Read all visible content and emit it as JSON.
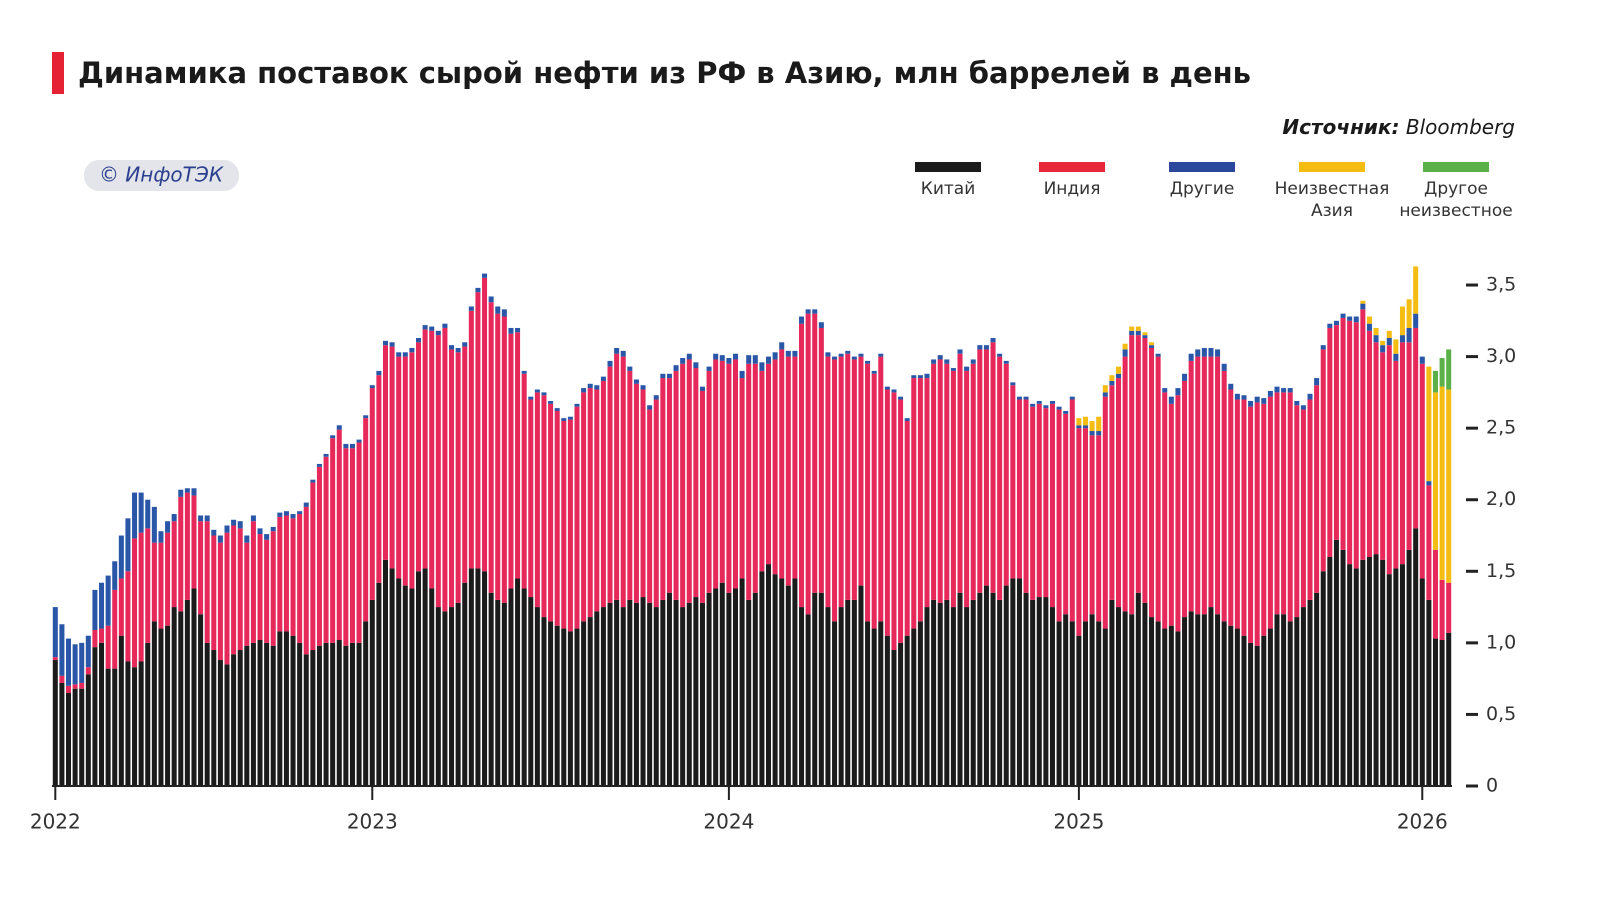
{
  "chart_data": {
    "type": "stacked_bar",
    "title": "Динамика поставок сырой нефти из РФ в Азию, млн баррелей в день",
    "source_label": "Источник:",
    "source": "Bloomberg",
    "watermark": "© ИнфоТЭК",
    "categories": [
      "2022",
      null,
      null,
      null,
      null,
      null,
      null,
      null,
      null,
      null,
      null,
      null,
      null,
      null,
      null,
      null,
      null,
      null,
      null,
      null,
      null,
      null,
      null,
      null,
      null,
      null,
      null,
      null,
      null,
      null,
      null,
      null,
      null,
      null,
      null,
      null,
      null,
      null,
      null,
      null,
      null,
      null,
      null,
      null,
      null,
      null,
      null,
      null,
      "2023",
      null,
      null,
      null,
      null,
      null,
      null,
      null,
      null,
      null,
      null,
      null,
      null,
      null,
      null,
      null,
      null,
      null,
      null,
      null,
      null,
      null,
      null,
      null,
      null,
      null,
      null,
      null,
      null,
      null,
      null,
      null,
      null,
      null,
      null,
      null,
      null,
      null,
      null,
      null,
      null,
      null,
      null,
      null,
      null,
      null,
      null,
      null,
      null,
      null,
      null,
      null,
      null,
      null,
      "2024",
      null,
      null,
      null,
      null,
      null,
      null,
      null,
      null,
      null,
      null,
      null,
      null,
      null,
      null,
      null,
      null,
      null,
      null,
      null,
      null,
      null,
      null,
      null,
      null,
      null,
      null,
      null,
      null,
      null,
      null,
      null,
      null,
      null,
      null,
      null,
      null,
      null,
      null,
      null,
      null,
      null,
      null,
      null,
      null,
      null,
      null,
      null,
      null,
      null,
      null,
      null,
      null,
      "2025",
      null,
      null,
      null,
      null,
      null,
      null,
      null,
      null,
      null,
      null,
      null,
      null,
      null,
      null,
      null,
      null,
      null,
      null,
      null,
      null,
      null,
      null,
      null,
      null,
      null,
      null,
      null,
      null,
      null,
      null,
      null,
      null,
      null,
      null,
      null,
      null,
      null,
      null,
      null,
      null,
      null,
      null,
      null,
      null,
      null,
      null,
      null,
      null,
      null,
      null,
      null,
      "2026",
      null,
      null,
      null,
      null
    ],
    "series": [
      {
        "name": "Китай",
        "color": "#1b1b1b",
        "values": [
          0.88,
          0.72,
          0.65,
          0.68,
          0.68,
          0.78,
          0.97,
          1.0,
          0.82,
          0.82,
          1.05,
          0.87,
          0.83,
          0.87,
          1.0,
          1.15,
          1.1,
          1.12,
          1.25,
          1.22,
          1.3,
          1.38,
          1.2,
          1.0,
          0.95,
          0.88,
          0.85,
          0.92,
          0.95,
          0.98,
          1.0,
          1.02,
          1.0,
          0.98,
          1.08,
          1.08,
          1.05,
          1.0,
          0.92,
          0.95,
          0.98,
          1.0,
          1.0,
          1.02,
          0.98,
          1.0,
          1.0,
          1.15,
          1.3,
          1.42,
          1.58,
          1.52,
          1.45,
          1.4,
          1.38,
          1.5,
          1.52,
          1.38,
          1.25,
          1.22,
          1.25,
          1.28,
          1.42,
          1.52,
          1.52,
          1.5,
          1.35,
          1.3,
          1.28,
          1.38,
          1.45,
          1.38,
          1.32,
          1.25,
          1.18,
          1.15,
          1.12,
          1.1,
          1.08,
          1.1,
          1.15,
          1.18,
          1.22,
          1.25,
          1.28,
          1.3,
          1.25,
          1.3,
          1.28,
          1.32,
          1.28,
          1.25,
          1.3,
          1.35,
          1.3,
          1.25,
          1.28,
          1.32,
          1.28,
          1.35,
          1.38,
          1.42,
          1.35,
          1.38,
          1.45,
          1.3,
          1.35,
          1.5,
          1.55,
          1.48,
          1.45,
          1.4,
          1.45,
          1.25,
          1.2,
          1.35,
          1.35,
          1.25,
          1.15,
          1.25,
          1.3,
          1.3,
          1.4,
          1.15,
          1.1,
          1.15,
          1.05,
          0.95,
          1.0,
          1.05,
          1.1,
          1.15,
          1.25,
          1.3,
          1.28,
          1.3,
          1.25,
          1.35,
          1.25,
          1.3,
          1.35,
          1.4,
          1.35,
          1.3,
          1.4,
          1.45,
          1.45,
          1.35,
          1.3,
          1.32,
          1.32,
          1.25,
          1.15,
          1.2,
          1.15,
          1.05,
          1.15,
          1.2,
          1.15,
          1.1,
          1.3,
          1.25,
          1.22,
          1.2,
          1.35,
          1.28,
          1.18,
          1.15,
          1.1,
          1.12,
          1.08,
          1.18,
          1.22,
          1.2,
          1.2,
          1.25,
          1.2,
          1.15,
          1.12,
          1.1,
          1.05,
          1.0,
          0.98,
          1.05,
          1.1,
          1.2,
          1.2,
          1.15,
          1.18,
          1.25,
          1.3,
          1.35,
          1.5,
          1.6,
          1.72,
          1.65,
          1.55,
          1.52,
          1.58,
          1.6,
          1.62,
          1.58,
          1.48,
          1.52,
          1.55,
          1.65,
          1.8,
          1.45,
          1.3,
          1.03,
          1.02,
          1.07
        ]
      },
      {
        "name": "Индия",
        "color": "#e6285a",
        "legend_color": "#e8283a",
        "values": [
          0.02,
          0.05,
          0.05,
          0.03,
          0.04,
          0.05,
          0.12,
          0.1,
          0.3,
          0.55,
          0.4,
          0.63,
          0.9,
          0.9,
          0.8,
          0.55,
          0.6,
          0.65,
          0.6,
          0.8,
          0.75,
          0.65,
          0.65,
          0.85,
          0.8,
          0.82,
          0.92,
          0.9,
          0.85,
          0.72,
          0.85,
          0.74,
          0.72,
          0.8,
          0.8,
          0.81,
          0.82,
          0.9,
          1.03,
          1.17,
          1.25,
          1.3,
          1.43,
          1.47,
          1.38,
          1.36,
          1.4,
          1.42,
          1.48,
          1.45,
          1.5,
          1.55,
          1.55,
          1.6,
          1.65,
          1.6,
          1.67,
          1.8,
          1.9,
          1.98,
          1.8,
          1.75,
          1.65,
          1.8,
          1.93,
          2.05,
          2.03,
          2.0,
          2.0,
          1.78,
          1.72,
          1.5,
          1.38,
          1.5,
          1.55,
          1.52,
          1.5,
          1.45,
          1.48,
          1.55,
          1.6,
          1.6,
          1.55,
          1.58,
          1.65,
          1.72,
          1.75,
          1.6,
          1.53,
          1.45,
          1.35,
          1.45,
          1.55,
          1.5,
          1.6,
          1.7,
          1.7,
          1.6,
          1.48,
          1.55,
          1.6,
          1.55,
          1.6,
          1.6,
          1.4,
          1.65,
          1.6,
          1.4,
          1.4,
          1.5,
          1.6,
          1.6,
          1.55,
          1.98,
          2.1,
          1.95,
          1.85,
          1.75,
          1.83,
          1.75,
          1.72,
          1.68,
          1.6,
          1.8,
          1.78,
          1.85,
          1.72,
          1.8,
          1.7,
          1.5,
          1.75,
          1.7,
          1.6,
          1.65,
          1.7,
          1.65,
          1.65,
          1.67,
          1.65,
          1.65,
          1.7,
          1.65,
          1.75,
          1.7,
          1.55,
          1.35,
          1.25,
          1.35,
          1.35,
          1.35,
          1.32,
          1.42,
          1.48,
          1.4,
          1.55,
          1.45,
          1.35,
          1.25,
          1.3,
          1.62,
          1.5,
          1.6,
          1.78,
          1.95,
          1.8,
          1.85,
          1.88,
          1.85,
          1.65,
          1.55,
          1.65,
          1.65,
          1.75,
          1.8,
          1.8,
          1.75,
          1.8,
          1.75,
          1.65,
          1.6,
          1.65,
          1.65,
          1.7,
          1.62,
          1.62,
          1.55,
          1.55,
          1.6,
          1.48,
          1.38,
          1.4,
          1.45,
          1.55,
          1.6,
          1.5,
          1.62,
          1.7,
          1.72,
          1.75,
          1.58,
          1.48,
          1.45,
          1.6,
          1.45,
          1.55,
          1.45,
          1.4,
          1.5,
          0.8,
          0.62,
          0.42,
          0.35
        ]
      },
      {
        "name": "Другие",
        "color": "#2a56a8",
        "legend_color": "#2b479b",
        "values": [
          0.35,
          0.36,
          0.33,
          0.28,
          0.28,
          0.22,
          0.28,
          0.32,
          0.35,
          0.2,
          0.3,
          0.37,
          0.32,
          0.28,
          0.2,
          0.25,
          0.08,
          0.08,
          0.05,
          0.05,
          0.03,
          0.05,
          0.04,
          0.04,
          0.04,
          0.05,
          0.05,
          0.04,
          0.05,
          0.05,
          0.04,
          0.04,
          0.04,
          0.03,
          0.03,
          0.03,
          0.03,
          0.02,
          0.03,
          0.02,
          0.02,
          0.02,
          0.02,
          0.03,
          0.03,
          0.03,
          0.02,
          0.02,
          0.02,
          0.03,
          0.03,
          0.03,
          0.03,
          0.03,
          0.03,
          0.03,
          0.03,
          0.03,
          0.03,
          0.03,
          0.03,
          0.03,
          0.03,
          0.03,
          0.03,
          0.03,
          0.04,
          0.05,
          0.05,
          0.04,
          0.03,
          0.02,
          0.02,
          0.02,
          0.02,
          0.02,
          0.02,
          0.02,
          0.02,
          0.02,
          0.03,
          0.03,
          0.03,
          0.03,
          0.04,
          0.04,
          0.04,
          0.03,
          0.03,
          0.03,
          0.03,
          0.03,
          0.03,
          0.03,
          0.04,
          0.04,
          0.04,
          0.04,
          0.03,
          0.03,
          0.04,
          0.04,
          0.04,
          0.04,
          0.05,
          0.06,
          0.06,
          0.06,
          0.05,
          0.05,
          0.05,
          0.04,
          0.04,
          0.05,
          0.03,
          0.03,
          0.04,
          0.03,
          0.02,
          0.02,
          0.02,
          0.02,
          0.02,
          0.02,
          0.02,
          0.02,
          0.02,
          0.02,
          0.02,
          0.02,
          0.02,
          0.02,
          0.03,
          0.03,
          0.03,
          0.03,
          0.02,
          0.03,
          0.03,
          0.03,
          0.03,
          0.03,
          0.03,
          0.02,
          0.02,
          0.02,
          0.02,
          0.02,
          0.02,
          0.02,
          0.02,
          0.02,
          0.02,
          0.02,
          0.02,
          0.02,
          0.02,
          0.03,
          0.03,
          0.03,
          0.03,
          0.03,
          0.05,
          0.03,
          0.03,
          0.02,
          0.02,
          0.02,
          0.03,
          0.05,
          0.05,
          0.05,
          0.05,
          0.05,
          0.06,
          0.06,
          0.05,
          0.05,
          0.04,
          0.04,
          0.03,
          0.04,
          0.04,
          0.04,
          0.04,
          0.04,
          0.03,
          0.03,
          0.03,
          0.03,
          0.04,
          0.05,
          0.03,
          0.03,
          0.03,
          0.03,
          0.03,
          0.04,
          0.04,
          0.05,
          0.05,
          0.05,
          0.05,
          0.05,
          0.05,
          0.1,
          0.1,
          0.05,
          0.03,
          0,
          0,
          0
        ]
      },
      {
        "name": "Неизвестная Азия",
        "color": "#f5bc12",
        "values": [
          0,
          0,
          0,
          0,
          0,
          0,
          0,
          0,
          0,
          0,
          0,
          0,
          0,
          0,
          0,
          0,
          0,
          0,
          0,
          0,
          0,
          0,
          0,
          0,
          0,
          0,
          0,
          0,
          0,
          0,
          0,
          0,
          0,
          0,
          0,
          0,
          0,
          0,
          0,
          0,
          0,
          0,
          0,
          0,
          0,
          0,
          0,
          0,
          0,
          0,
          0,
          0,
          0,
          0,
          0,
          0,
          0,
          0,
          0,
          0,
          0,
          0,
          0,
          0,
          0,
          0,
          0,
          0,
          0,
          0,
          0,
          0,
          0,
          0,
          0,
          0,
          0,
          0,
          0,
          0,
          0,
          0,
          0,
          0,
          0,
          0,
          0,
          0,
          0,
          0,
          0,
          0,
          0,
          0,
          0,
          0,
          0,
          0,
          0,
          0,
          0,
          0,
          0,
          0,
          0,
          0,
          0,
          0,
          0,
          0,
          0,
          0,
          0,
          0,
          0,
          0,
          0,
          0,
          0,
          0,
          0,
          0,
          0,
          0,
          0,
          0,
          0,
          0,
          0,
          0,
          0,
          0,
          0,
          0,
          0,
          0,
          0,
          0,
          0,
          0,
          0,
          0,
          0,
          0,
          0,
          0,
          0,
          0,
          0,
          0,
          0,
          0,
          0,
          0,
          0,
          0.05,
          0.06,
          0.07,
          0.1,
          0.05,
          0.04,
          0.05,
          0.04,
          0.03,
          0.03,
          0.02,
          0.02,
          0,
          0,
          0,
          0,
          0,
          0,
          0,
          0,
          0,
          0,
          0,
          0,
          0,
          0,
          0,
          0,
          0,
          0,
          0,
          0,
          0,
          0,
          0,
          0,
          0,
          0,
          0,
          0,
          0,
          0,
          0,
          0.02,
          0.05,
          0.05,
          0.03,
          0.05,
          0.1,
          0.2,
          0.2,
          0.33,
          0,
          0.8,
          1.1,
          1.35,
          1.35
        ]
      },
      {
        "name": "Другое неизвестное",
        "color": "#5cb04a",
        "values": [
          0,
          0,
          0,
          0,
          0,
          0,
          0,
          0,
          0,
          0,
          0,
          0,
          0,
          0,
          0,
          0,
          0,
          0,
          0,
          0,
          0,
          0,
          0,
          0,
          0,
          0,
          0,
          0,
          0,
          0,
          0,
          0,
          0,
          0,
          0,
          0,
          0,
          0,
          0,
          0,
          0,
          0,
          0,
          0,
          0,
          0,
          0,
          0,
          0,
          0,
          0,
          0,
          0,
          0,
          0,
          0,
          0,
          0,
          0,
          0,
          0,
          0,
          0,
          0,
          0,
          0,
          0,
          0,
          0,
          0,
          0,
          0,
          0,
          0,
          0,
          0,
          0,
          0,
          0,
          0,
          0,
          0,
          0,
          0,
          0,
          0,
          0,
          0,
          0,
          0,
          0,
          0,
          0,
          0,
          0,
          0,
          0,
          0,
          0,
          0,
          0,
          0,
          0,
          0,
          0,
          0,
          0,
          0,
          0,
          0,
          0,
          0,
          0,
          0,
          0,
          0,
          0,
          0,
          0,
          0,
          0,
          0,
          0,
          0,
          0,
          0,
          0,
          0,
          0,
          0,
          0,
          0,
          0,
          0,
          0,
          0,
          0,
          0,
          0,
          0,
          0,
          0,
          0,
          0,
          0,
          0,
          0,
          0,
          0,
          0,
          0,
          0,
          0,
          0,
          0,
          0,
          0,
          0,
          0,
          0,
          0,
          0,
          0,
          0,
          0,
          0,
          0,
          0,
          0,
          0,
          0,
          0,
          0,
          0,
          0,
          0,
          0,
          0,
          0,
          0,
          0,
          0,
          0,
          0,
          0,
          0,
          0,
          0,
          0,
          0,
          0,
          0,
          0,
          0,
          0,
          0,
          0,
          0,
          0,
          0,
          0,
          0,
          0,
          0,
          0,
          0,
          0,
          0,
          0,
          0.15,
          0.2,
          0.28
        ]
      }
    ],
    "ylim": [
      0,
      3.7
    ],
    "yticks": [
      0,
      {
        "value": 0.5,
        "label": "0,5"
      },
      {
        "value": 1,
        "label": "1,0"
      },
      {
        "value": 1.5,
        "label": "1,5"
      },
      {
        "value": 2,
        "label": "2,0"
      },
      {
        "value": 2.5,
        "label": "2,5"
      },
      {
        "value": 3,
        "label": "3,0"
      },
      {
        "value": 3.5,
        "label": "3,5"
      }
    ],
    "grid": false,
    "legend": "top-right"
  }
}
